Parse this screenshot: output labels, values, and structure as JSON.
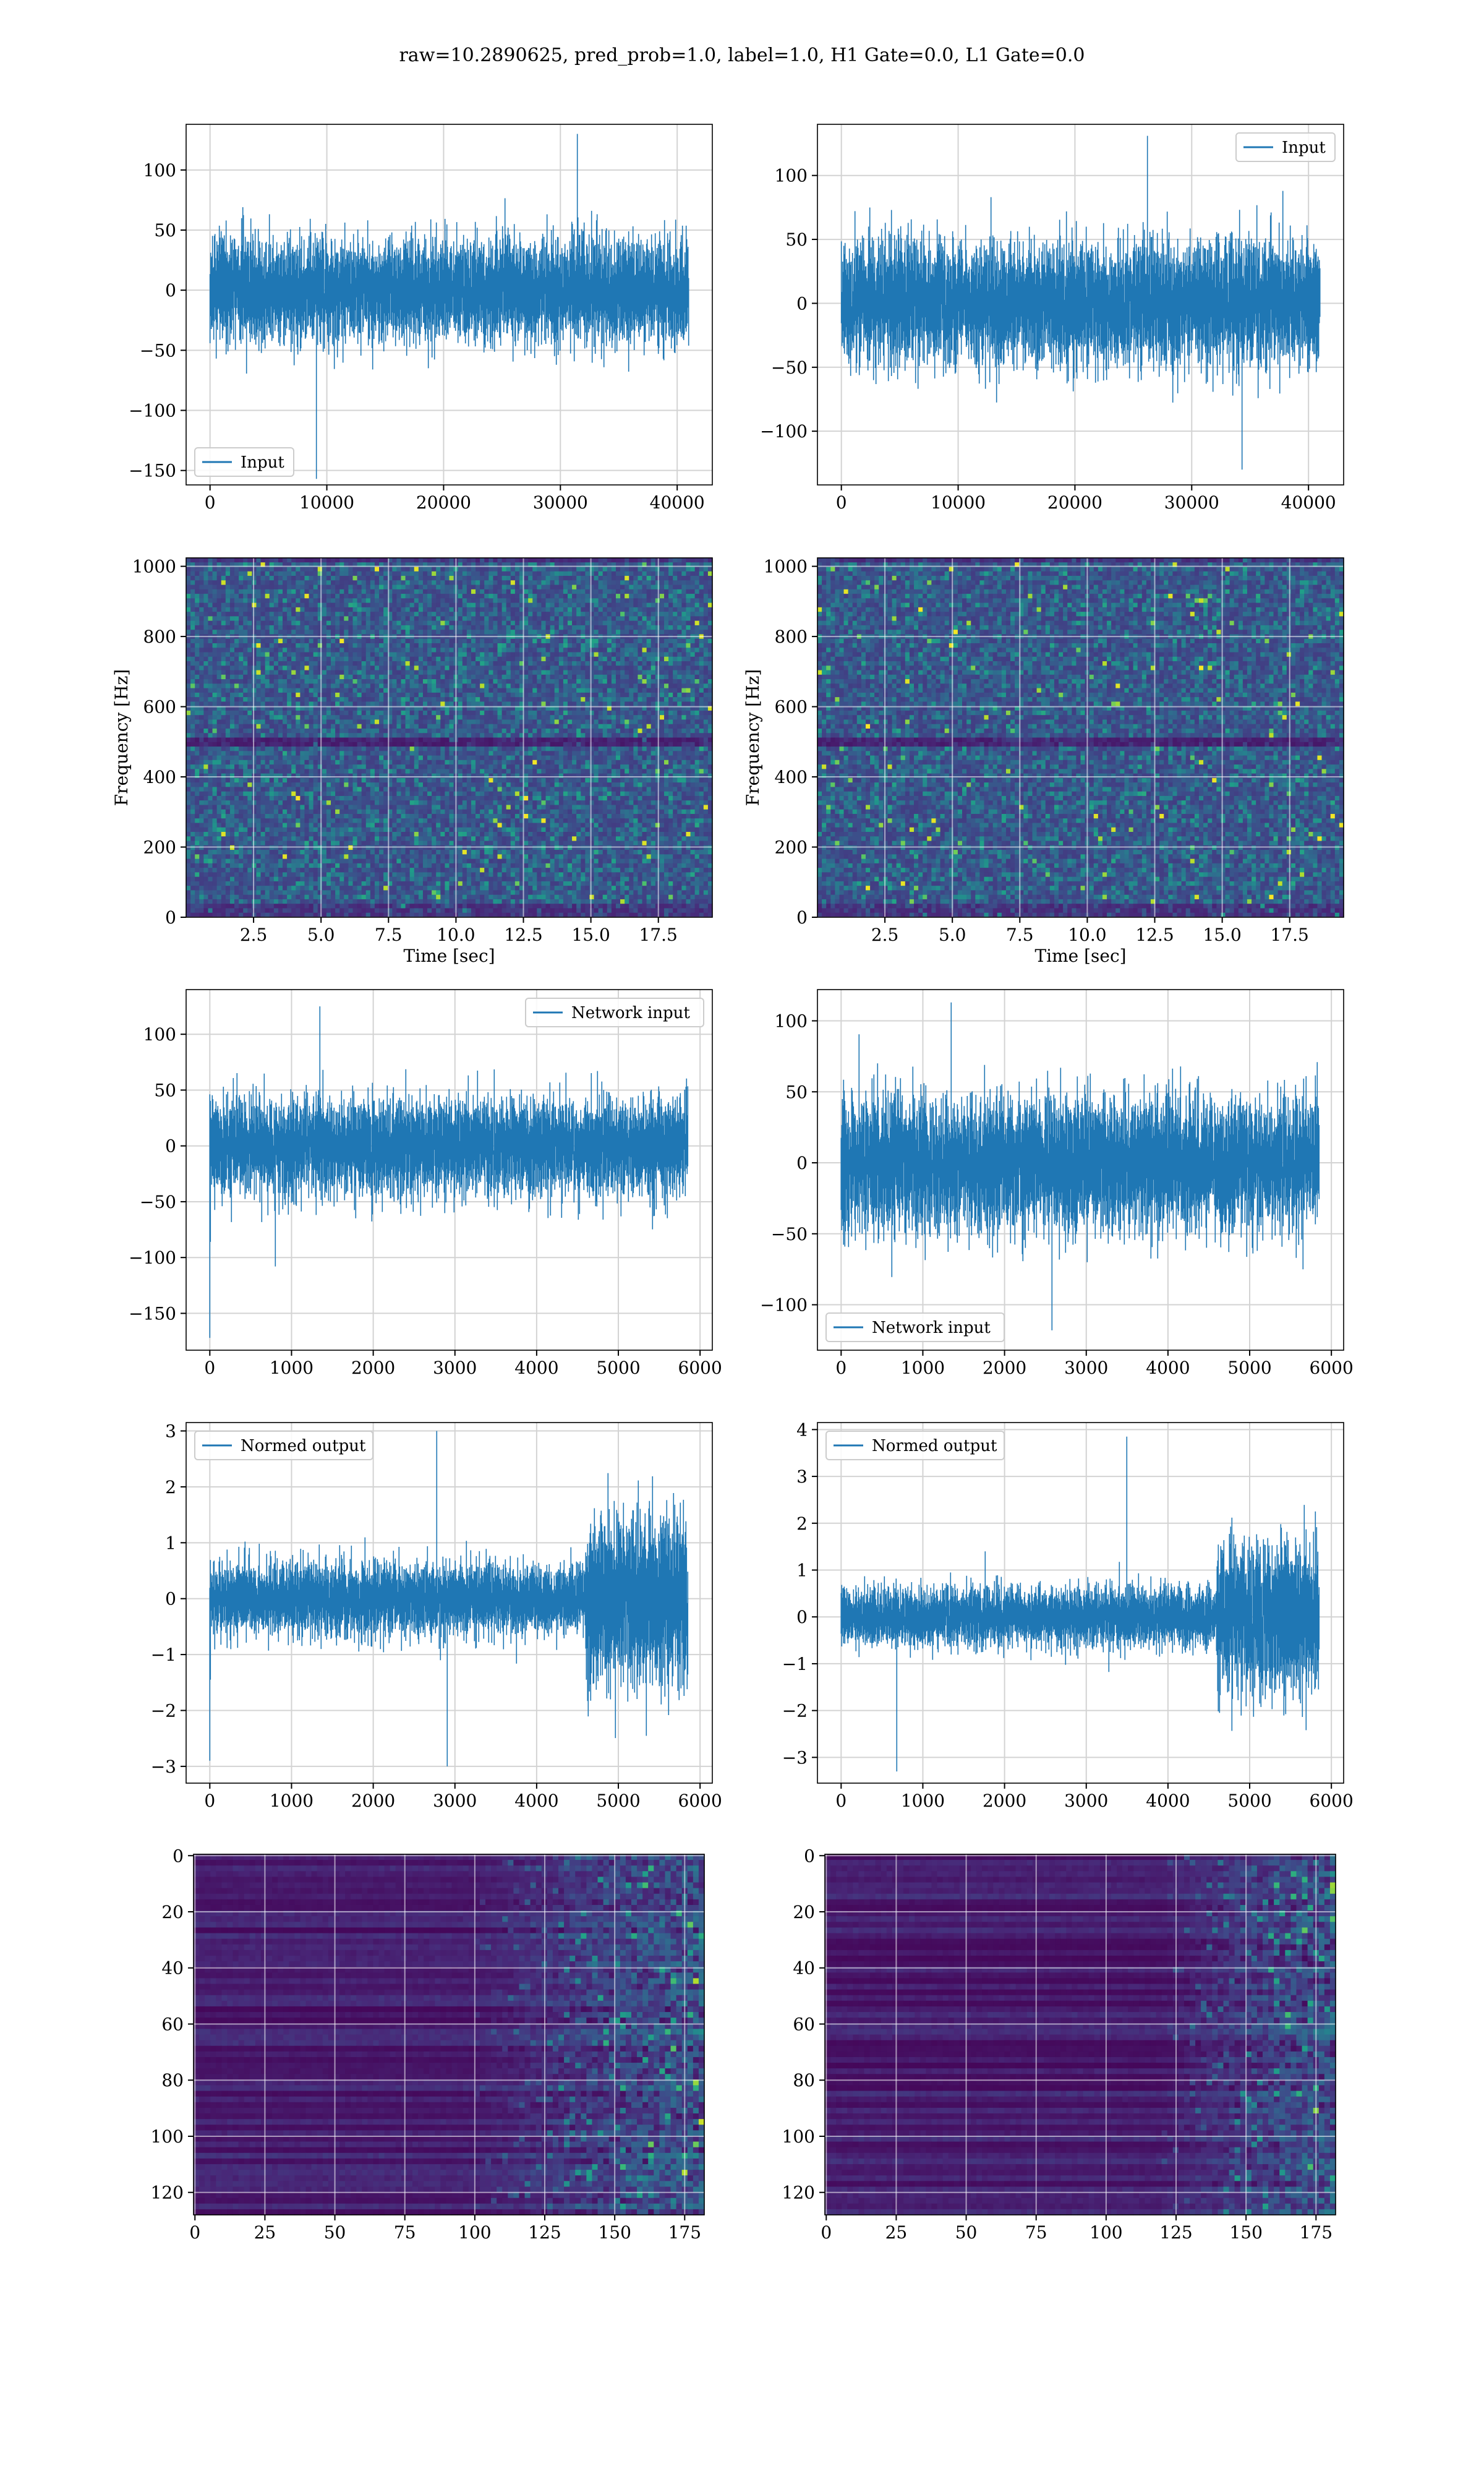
{
  "figure": {
    "suptitle": "raw=10.2890625, pred_prob=1.0, label=1.0, H1 Gate=0.0, L1 Gate=0.0"
  },
  "colors": {
    "series": "#1f77b4",
    "grid": "#d3d3d3",
    "viridis_dark": "#440154",
    "viridis_mid": "#21918c",
    "viridis_bright": "#fde725"
  },
  "chart_data": [
    {
      "id": "input_left",
      "type": "line",
      "x_range": [
        0,
        40960
      ],
      "xlim": [
        -2048,
        43008
      ],
      "ylim": [
        -162,
        138
      ],
      "xticks": [
        0,
        10000,
        20000,
        30000,
        40000
      ],
      "yticks": [
        -150,
        -100,
        -50,
        0,
        50,
        100
      ],
      "xtick_labels": [
        "0",
        "10000",
        "20000",
        "30000",
        "40000"
      ],
      "ytick_labels": [
        "−150",
        "−100",
        "−50",
        "0",
        "50",
        "100"
      ],
      "legend": {
        "label": "Input",
        "loc": "lower-left"
      },
      "envelope": {
        "sigma": 20,
        "body": 70,
        "min": -157,
        "max": 130
      },
      "grid": true
    },
    {
      "id": "input_right",
      "type": "line",
      "x_range": [
        0,
        40960
      ],
      "xlim": [
        -2048,
        43008
      ],
      "ylim": [
        -142,
        140
      ],
      "xticks": [
        0,
        10000,
        20000,
        30000,
        40000
      ],
      "yticks": [
        -100,
        -50,
        0,
        50,
        100
      ],
      "xtick_labels": [
        "0",
        "10000",
        "20000",
        "30000",
        "40000"
      ],
      "ytick_labels": [
        "−100",
        "−50",
        "0",
        "50",
        "100"
      ],
      "legend": {
        "label": "Input",
        "loc": "upper-right"
      },
      "envelope": {
        "sigma": 22,
        "body": 75,
        "min": -130,
        "max": 131
      },
      "grid": true
    },
    {
      "id": "spec_left",
      "type": "heatmap",
      "xlim": [
        0,
        19.5
      ],
      "ylim": [
        0,
        1024
      ],
      "xticks": [
        2.5,
        5.0,
        7.5,
        10.0,
        12.5,
        15.0,
        17.5
      ],
      "yticks": [
        0,
        200,
        400,
        600,
        800,
        1000
      ],
      "xtick_labels": [
        "2.5",
        "5.0",
        "7.5",
        "10.0",
        "12.5",
        "15.0",
        "17.5"
      ],
      "ytick_labels": [
        "0",
        "200",
        "400",
        "600",
        "800",
        "1000"
      ],
      "xlabel": "Time [sec]",
      "ylabel": "Frequency [Hz]",
      "colormap": "viridis",
      "grid": true
    },
    {
      "id": "spec_right",
      "type": "heatmap",
      "xlim": [
        0,
        19.5
      ],
      "ylim": [
        0,
        1024
      ],
      "xticks": [
        2.5,
        5.0,
        7.5,
        10.0,
        12.5,
        15.0,
        17.5
      ],
      "yticks": [
        0,
        200,
        400,
        600,
        800,
        1000
      ],
      "xtick_labels": [
        "2.5",
        "5.0",
        "7.5",
        "10.0",
        "12.5",
        "15.0",
        "17.5"
      ],
      "ytick_labels": [
        "0",
        "200",
        "400",
        "600",
        "800",
        "1000"
      ],
      "xlabel": "Time [sec]",
      "ylabel": "Frequency [Hz]",
      "colormap": "viridis",
      "grid": true
    },
    {
      "id": "net_left",
      "type": "line",
      "x_range": [
        0,
        5850
      ],
      "xlim": [
        -290,
        6150
      ],
      "ylim": [
        -183,
        140
      ],
      "xticks": [
        0,
        1000,
        2000,
        3000,
        4000,
        5000,
        6000
      ],
      "yticks": [
        -150,
        -100,
        -50,
        0,
        50,
        100
      ],
      "xtick_labels": [
        "0",
        "1000",
        "2000",
        "3000",
        "4000",
        "5000",
        "6000"
      ],
      "ytick_labels": [
        "−150",
        "−100",
        "−50",
        "0",
        "50",
        "100"
      ],
      "legend": {
        "label": "Network input",
        "loc": "upper-right"
      },
      "envelope": {
        "sigma": 20,
        "body": 65,
        "min": -108,
        "max": 125,
        "spike": -172
      },
      "grid": true
    },
    {
      "id": "net_right",
      "type": "line",
      "x_range": [
        0,
        5850
      ],
      "xlim": [
        -290,
        6150
      ],
      "ylim": [
        -132,
        122
      ],
      "xticks": [
        0,
        1000,
        2000,
        3000,
        4000,
        5000,
        6000
      ],
      "yticks": [
        -100,
        -50,
        0,
        50,
        100
      ],
      "xtick_labels": [
        "0",
        "1000",
        "2000",
        "3000",
        "4000",
        "5000",
        "6000"
      ],
      "ytick_labels": [
        "−100",
        "−50",
        "0",
        "50",
        "100"
      ],
      "legend": {
        "label": "Network input",
        "loc": "lower-left"
      },
      "envelope": {
        "sigma": 22,
        "body": 70,
        "min": -118,
        "max": 113
      },
      "grid": true
    },
    {
      "id": "norm_left",
      "type": "line",
      "x_range": [
        0,
        5850
      ],
      "xlim": [
        -290,
        6150
      ],
      "ylim": [
        -3.3,
        3.15
      ],
      "xticks": [
        0,
        1000,
        2000,
        3000,
        4000,
        5000,
        6000
      ],
      "yticks": [
        -3,
        -2,
        -1,
        0,
        1,
        2,
        3
      ],
      "xtick_labels": [
        "0",
        "1000",
        "2000",
        "3000",
        "4000",
        "5000",
        "6000"
      ],
      "ytick_labels": [
        "−3",
        "−2",
        "−1",
        "0",
        "1",
        "2",
        "3"
      ],
      "legend": {
        "label": "Normed output",
        "loc": "upper-left"
      },
      "envelope": {
        "sigma": 0.3,
        "body": 1.0,
        "min": -3.0,
        "max": 3.0,
        "burst_start": 4600,
        "burst_scale": 2.4,
        "spike": -2.9
      },
      "grid": true
    },
    {
      "id": "norm_right",
      "type": "line",
      "x_range": [
        0,
        5850
      ],
      "xlim": [
        -290,
        6150
      ],
      "ylim": [
        -3.55,
        4.15
      ],
      "xticks": [
        0,
        1000,
        2000,
        3000,
        4000,
        5000,
        6000
      ],
      "yticks": [
        -3,
        -2,
        -1,
        0,
        1,
        2,
        3,
        4
      ],
      "xtick_labels": [
        "0",
        "1000",
        "2000",
        "3000",
        "4000",
        "5000",
        "6000"
      ],
      "ytick_labels": [
        "−3",
        "−2",
        "−1",
        "0",
        "1",
        "2",
        "3",
        "4"
      ],
      "legend": {
        "label": "Normed output",
        "loc": "upper-left"
      },
      "envelope": {
        "sigma": 0.3,
        "body": 0.95,
        "min": -3.3,
        "max": 3.85,
        "burst_start": 4600,
        "burst_scale": 2.6
      },
      "grid": true
    },
    {
      "id": "feat_left",
      "type": "heatmap",
      "xlim": [
        -0.5,
        182
      ],
      "ylim": [
        128,
        -0.5
      ],
      "xticks": [
        0,
        25,
        50,
        75,
        100,
        125,
        150,
        175
      ],
      "yticks": [
        0,
        20,
        40,
        60,
        80,
        100,
        120
      ],
      "xtick_labels": [
        "0",
        "25",
        "50",
        "75",
        "100",
        "125",
        "150",
        "175"
      ],
      "ytick_labels": [
        "0",
        "20",
        "40",
        "60",
        "80",
        "100",
        "120"
      ],
      "colormap": "viridis",
      "activity_onset": 100,
      "grid": true
    },
    {
      "id": "feat_right",
      "type": "heatmap",
      "xlim": [
        -0.5,
        182
      ],
      "ylim": [
        128,
        -0.5
      ],
      "xticks": [
        0,
        25,
        50,
        75,
        100,
        125,
        150,
        175
      ],
      "yticks": [
        0,
        20,
        40,
        60,
        80,
        100,
        120
      ],
      "xtick_labels": [
        "0",
        "25",
        "50",
        "75",
        "100",
        "125",
        "150",
        "175"
      ],
      "ytick_labels": [
        "0",
        "20",
        "40",
        "60",
        "80",
        "100",
        "120"
      ],
      "colormap": "viridis",
      "activity_onset": 120,
      "grid": true
    }
  ]
}
